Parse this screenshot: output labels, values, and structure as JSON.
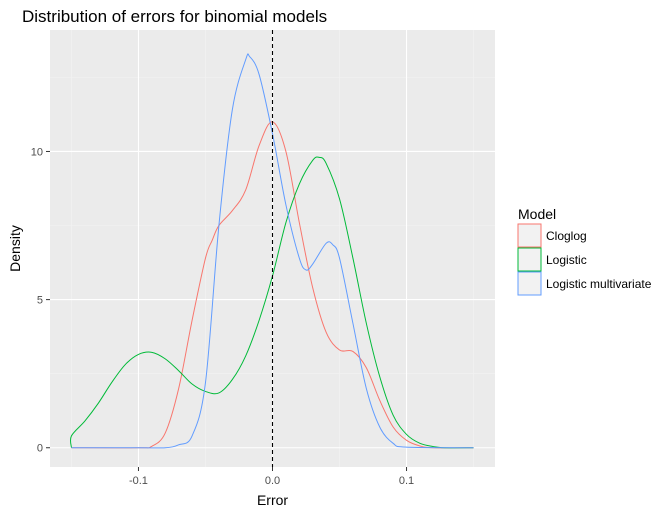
{
  "chart_data": {
    "type": "line",
    "subtype": "density",
    "title": "Distribution of errors for binomial models",
    "xlabel": "Error",
    "ylabel": "Density",
    "xlim": [
      -0.166,
      0.166
    ],
    "ylim": [
      -0.65,
      14.1
    ],
    "x_ticks": [
      {
        "value": -0.1,
        "label": "-0.1"
      },
      {
        "value": 0.0,
        "label": "0.0"
      },
      {
        "value": 0.1,
        "label": "0.1"
      }
    ],
    "y_ticks": [
      {
        "value": 0,
        "label": "0"
      },
      {
        "value": 5,
        "label": "5"
      },
      {
        "value": 10,
        "label": "10"
      }
    ],
    "vline": {
      "x": 0.0,
      "style": "dashed",
      "color": "#000000"
    },
    "grid": true,
    "legend": {
      "title": "Model",
      "position": "right"
    },
    "series": [
      {
        "name": "Cloglog",
        "color": "#F8766D",
        "x": [
          -0.15,
          -0.1,
          -0.09,
          -0.08,
          -0.07,
          -0.06,
          -0.05,
          -0.045,
          -0.04,
          -0.03,
          -0.02,
          -0.01,
          0.0,
          0.01,
          0.02,
          0.03,
          0.04,
          0.05,
          0.06,
          0.07,
          0.08,
          0.09,
          0.1,
          0.11,
          0.12,
          0.15
        ],
        "y": [
          0,
          0.0,
          0.05,
          0.5,
          2.0,
          4.3,
          6.4,
          7.0,
          7.5,
          8.0,
          8.7,
          10.2,
          11.0,
          10.0,
          7.6,
          5.4,
          3.9,
          3.3,
          3.25,
          2.7,
          1.6,
          0.7,
          0.25,
          0.06,
          0.0,
          0
        ]
      },
      {
        "name": "Logistic",
        "color": "#00BA38",
        "x": [
          -0.15,
          -0.15,
          -0.14,
          -0.13,
          -0.12,
          -0.11,
          -0.1,
          -0.09,
          -0.08,
          -0.07,
          -0.06,
          -0.05,
          -0.04,
          -0.03,
          -0.02,
          -0.01,
          0.0,
          0.01,
          0.02,
          0.03,
          0.035,
          0.04,
          0.05,
          0.06,
          0.07,
          0.08,
          0.09,
          0.1,
          0.11,
          0.12,
          0.128,
          0.15
        ],
        "y": [
          0,
          0.4,
          0.9,
          1.5,
          2.2,
          2.8,
          3.15,
          3.22,
          3.0,
          2.6,
          2.15,
          1.9,
          1.85,
          2.3,
          3.1,
          4.3,
          5.8,
          7.6,
          8.9,
          9.7,
          9.8,
          9.6,
          8.4,
          6.4,
          4.2,
          2.4,
          1.1,
          0.45,
          0.15,
          0.04,
          0.0,
          0
        ]
      },
      {
        "name": "Logistic multivariate",
        "color": "#619CFF",
        "x": [
          -0.15,
          -0.1,
          -0.08,
          -0.07,
          -0.06,
          -0.05,
          -0.04,
          -0.03,
          -0.02,
          -0.017,
          -0.01,
          0.0,
          0.01,
          0.02,
          0.025,
          0.03,
          0.04,
          0.045,
          0.05,
          0.06,
          0.07,
          0.08,
          0.09,
          0.1,
          0.15
        ],
        "y": [
          0,
          0.0,
          0.0,
          0.1,
          0.4,
          2.2,
          7.5,
          11.4,
          13.1,
          13.2,
          12.6,
          10.6,
          8.2,
          6.4,
          6.0,
          6.2,
          6.9,
          6.85,
          6.4,
          4.2,
          2.0,
          0.7,
          0.15,
          0.02,
          0
        ]
      }
    ]
  }
}
